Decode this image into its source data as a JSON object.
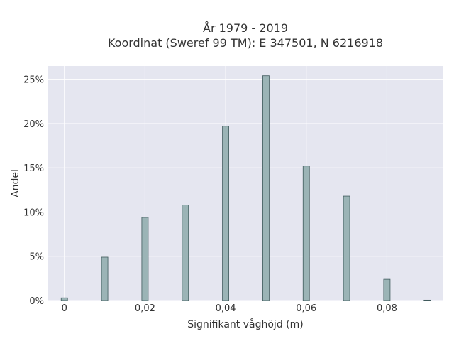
{
  "chart_data": {
    "type": "bar",
    "title_lines": [
      "År 1979 - 2019",
      "Koordinat (Sweref 99 TM): E 347501, N 6216918"
    ],
    "xlabel": "Signifikant våghöjd (m)",
    "ylabel": "Andel",
    "x": [
      0,
      0.01,
      0.02,
      0.03,
      0.04,
      0.05,
      0.06,
      0.07,
      0.08,
      0.09
    ],
    "values": [
      0.3,
      4.9,
      9.4,
      10.8,
      19.7,
      25.4,
      15.2,
      11.8,
      2.4,
      0.05
    ],
    "xlim": [
      -0.004,
      0.094
    ],
    "ylim": [
      0,
      26.5
    ],
    "x_ticks": [
      0,
      0.02,
      0.04,
      0.06,
      0.08
    ],
    "x_tick_labels": [
      "0",
      "0,02",
      "0,04",
      "0,06",
      "0,08"
    ],
    "y_ticks": [
      0,
      5,
      10,
      15,
      20,
      25
    ],
    "y_tick_labels": [
      "0%",
      "5%",
      "10%",
      "15%",
      "20%",
      "25%"
    ],
    "grid": true,
    "colors": {
      "plot_bg": "#e5e6f0",
      "grid": "#ffffff",
      "bar_fill": "#9bb4b6",
      "bar_stroke": "#3f5a5c",
      "text": "#333333"
    }
  }
}
